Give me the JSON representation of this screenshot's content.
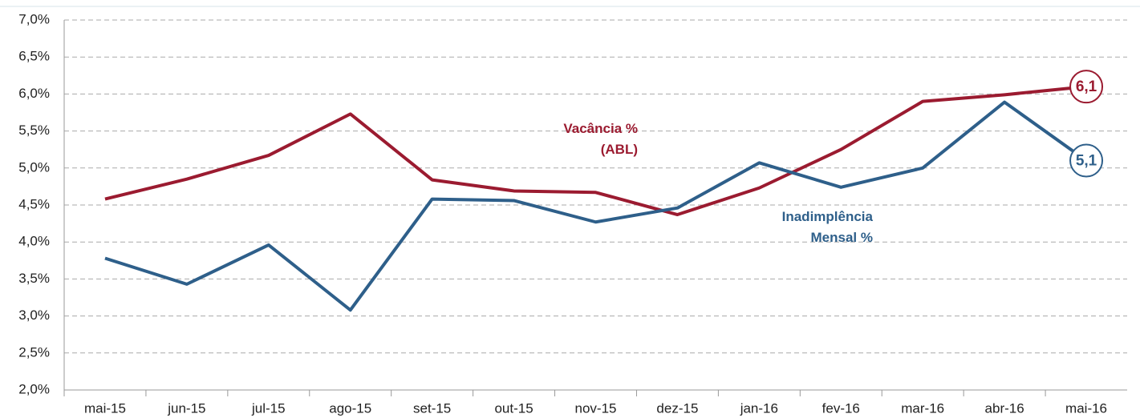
{
  "chart_data": {
    "type": "line",
    "categories": [
      "mai-15",
      "jun-15",
      "jul-15",
      "ago-15",
      "set-15",
      "out-15",
      "nov-15",
      "dez-15",
      "jan-16",
      "fev-16",
      "mar-16",
      "abr-16",
      "mai-16"
    ],
    "series": [
      {
        "name": "Vacância % (ABL)",
        "color": "#9b1b30",
        "values": [
          4.58,
          4.85,
          5.17,
          5.73,
          4.84,
          4.69,
          4.67,
          4.37,
          4.73,
          5.25,
          5.9,
          5.99,
          6.1
        ],
        "value_labels": [
          null,
          null,
          null,
          null,
          null,
          null,
          null,
          null,
          null,
          null,
          null,
          null,
          "6,1"
        ]
      },
      {
        "name": "Inadimplência Mensal %",
        "color": "#2e5f8a",
        "values": [
          3.78,
          3.43,
          3.96,
          3.08,
          4.58,
          4.56,
          4.27,
          4.46,
          5.07,
          4.74,
          5.0,
          5.89,
          5.1
        ],
        "value_labels": [
          null,
          null,
          null,
          null,
          null,
          null,
          null,
          null,
          null,
          null,
          null,
          null,
          "5,1"
        ]
      }
    ],
    "ylim": [
      2.0,
      7.0
    ],
    "yticks": [
      {
        "value": 2.0,
        "label": "2,0%"
      },
      {
        "value": 2.5,
        "label": "2,5%"
      },
      {
        "value": 3.0,
        "label": "3,0%"
      },
      {
        "value": 3.5,
        "label": "3,5%"
      },
      {
        "value": 4.0,
        "label": "4,0%"
      },
      {
        "value": 4.5,
        "label": "4,5%"
      },
      {
        "value": 5.0,
        "label": "5,0%"
      },
      {
        "value": 5.5,
        "label": "5,5%"
      },
      {
        "value": 6.0,
        "label": "6,0%"
      },
      {
        "value": 6.5,
        "label": "6,5%"
      },
      {
        "value": 7.0,
        "label": "7,0%"
      }
    ],
    "grid": true
  }
}
